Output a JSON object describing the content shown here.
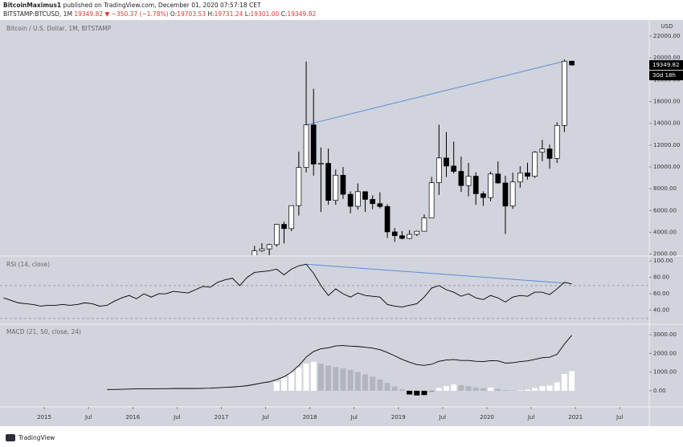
{
  "header": {
    "author": "BitcoinMaximus1",
    "published": "published on TradingView.com, December 01, 2020 07:57:18 CET",
    "symbol": "BITSTAMP:BTCUSD, 1M",
    "price": "19349.82",
    "change": "▼ −350.37 (−1.78%)",
    "ohlc": [
      {
        "label": "O:",
        "value": "19703.53"
      },
      {
        "label": "H:",
        "value": "19731.24"
      },
      {
        "label": "L:",
        "value": "19301.00"
      },
      {
        "label": "C:",
        "value": "19349.82"
      }
    ]
  },
  "footer": {
    "logo": "TradingView"
  },
  "chart_data": [
    {
      "type": "candlestick",
      "title": "Bitcoin / U.S. Dollar, 1M, BITSTAMP",
      "unit": "USD",
      "x": [
        "2017-05",
        "2017-06",
        "2017-07",
        "2017-08",
        "2017-09",
        "2017-10",
        "2017-11",
        "2017-12",
        "2018-01",
        "2018-02",
        "2018-03",
        "2018-04",
        "2018-05",
        "2018-06",
        "2018-07",
        "2018-08",
        "2018-09",
        "2018-10",
        "2018-11",
        "2018-12",
        "2019-01",
        "2019-02",
        "2019-03",
        "2019-04",
        "2019-05",
        "2019-06",
        "2019-07",
        "2019-08",
        "2019-09",
        "2019-10",
        "2019-11",
        "2019-12",
        "2020-01",
        "2020-02",
        "2020-03",
        "2020-04",
        "2020-05",
        "2020-06",
        "2020-07",
        "2020-08",
        "2020-09",
        "2020-10",
        "2020-11",
        "2020-12"
      ],
      "open": [
        1348,
        2300,
        2480,
        2870,
        4730,
        4340,
        6450,
        9950,
        13860,
        10260,
        10330,
        6930,
        9240,
        7490,
        6390,
        7730,
        7020,
        6630,
        6370,
        4040,
        3690,
        3440,
        3810,
        4100,
        5320,
        8560,
        10820,
        10080,
        9590,
        8290,
        9150,
        7540,
        7190,
        9350,
        8530,
        6410,
        8620,
        9450,
        9140,
        11350,
        11650,
        10780,
        13800,
        19703.53
      ],
      "high": [
        2760,
        3000,
        2950,
        4750,
        4980,
        6450,
        11400,
        19666,
        17170,
        11780,
        11680,
        9760,
        9990,
        7760,
        8490,
        7760,
        7400,
        7680,
        6580,
        4400,
        4120,
        4190,
        4140,
        5640,
        9080,
        13880,
        13200,
        12320,
        10950,
        10370,
        9510,
        7750,
        9570,
        10500,
        9190,
        9470,
        10070,
        10380,
        11450,
        12480,
        12050,
        14100,
        19850,
        19731.24
      ],
      "low": [
        1348,
        2200,
        1840,
        2680,
        2980,
        4110,
        5530,
        9500,
        9200,
        5870,
        6530,
        6530,
        7060,
        5750,
        6080,
        5880,
        6120,
        6200,
        3480,
        3120,
        3350,
        3370,
        3660,
        4100,
        5320,
        7440,
        9070,
        9400,
        7700,
        7300,
        6520,
        6430,
        6850,
        8450,
        3850,
        6150,
        8100,
        8830,
        8990,
        10520,
        9830,
        10370,
        13200,
        19301.0
      ],
      "close": [
        2300,
        2480,
        2870,
        4730,
        4340,
        6450,
        9950,
        13860,
        10260,
        10330,
        6930,
        9240,
        7490,
        6390,
        7730,
        7020,
        6630,
        6370,
        4040,
        3690,
        3440,
        3810,
        4100,
        5320,
        8560,
        10820,
        10080,
        9590,
        8290,
        9150,
        7540,
        7190,
        9350,
        8530,
        6410,
        8620,
        9450,
        9140,
        11350,
        11650,
        10780,
        13800,
        19700,
        19349.82
      ],
      "up_color": "#ffffff",
      "down_color": "#000000",
      "trendline": {
        "x": [
          "2017-12",
          "2020-11"
        ],
        "values": [
          13860,
          19700
        ],
        "color": "#5b8dd9"
      },
      "last_label": 19349.82,
      "countdown": "30d 18h",
      "xlim": [
        "2014-07",
        "2021-11"
      ],
      "xticks": [
        {
          "value": "2015-01",
          "label": "2015"
        },
        {
          "value": "2015-07",
          "label": "Jul"
        },
        {
          "value": "2016-01",
          "label": "2016"
        },
        {
          "value": "2016-07",
          "label": "Jul"
        },
        {
          "value": "2017-01",
          "label": "2017"
        },
        {
          "value": "2017-07",
          "label": "Jul"
        },
        {
          "value": "2018-01",
          "label": "2018"
        },
        {
          "value": "2018-07",
          "label": "Jul"
        },
        {
          "value": "2019-01",
          "label": "2019"
        },
        {
          "value": "2019-07",
          "label": "Jul"
        },
        {
          "value": "2020-01",
          "label": "2020"
        },
        {
          "value": "2020-07",
          "label": "Jul"
        },
        {
          "value": "2021-01",
          "label": "2021"
        },
        {
          "value": "2021-07",
          "label": "Jul"
        }
      ],
      "ylim": [
        1900,
        23400
      ],
      "yticks": [
        {
          "value": 2000,
          "label": "2000.00"
        },
        {
          "value": 4000,
          "label": "4000.00"
        },
        {
          "value": 6000,
          "label": "6000.00"
        },
        {
          "value": 8000,
          "label": "8000.00"
        },
        {
          "value": 10000,
          "label": "10000.00"
        },
        {
          "value": 12000,
          "label": "12000.00"
        },
        {
          "value": 14000,
          "label": "14000.00"
        },
        {
          "value": 16000,
          "label": "16000.00"
        },
        {
          "value": 18000,
          "label": "18000.00"
        },
        {
          "value": 20000,
          "label": "20000.00"
        },
        {
          "value": 22000,
          "label": "22000.00"
        }
      ]
    },
    {
      "type": "line",
      "title": "RSI (14, close)",
      "x": [
        "2014-07",
        "2014-08",
        "2014-09",
        "2014-10",
        "2014-11",
        "2014-12",
        "2015-01",
        "2015-02",
        "2015-03",
        "2015-04",
        "2015-05",
        "2015-06",
        "2015-07",
        "2015-08",
        "2015-09",
        "2015-10",
        "2015-11",
        "2015-12",
        "2016-01",
        "2016-02",
        "2016-03",
        "2016-04",
        "2016-05",
        "2016-06",
        "2016-07",
        "2016-08",
        "2016-09",
        "2016-10",
        "2016-11",
        "2016-12",
        "2017-01",
        "2017-02",
        "2017-03",
        "2017-04",
        "2017-05",
        "2017-06",
        "2017-07",
        "2017-08",
        "2017-09",
        "2017-10",
        "2017-11",
        "2017-12",
        "2018-01",
        "2018-02",
        "2018-03",
        "2018-04",
        "2018-05",
        "2018-06",
        "2018-07",
        "2018-08",
        "2018-09",
        "2018-10",
        "2018-11",
        "2018-12",
        "2019-01",
        "2019-02",
        "2019-03",
        "2019-04",
        "2019-05",
        "2019-06",
        "2019-07",
        "2019-08",
        "2019-09",
        "2019-10",
        "2019-11",
        "2019-12",
        "2020-01",
        "2020-02",
        "2020-03",
        "2020-04",
        "2020-05",
        "2020-06",
        "2020-07",
        "2020-08",
        "2020-09",
        "2020-10",
        "2020-11",
        "2020-12"
      ],
      "series": [
        {
          "color": "#000000",
          "values": [
            55,
            52,
            49,
            48,
            47,
            45,
            46,
            46,
            47,
            46,
            47,
            49,
            48,
            45,
            46,
            51,
            55,
            58,
            54,
            60,
            56,
            60,
            60,
            63,
            62,
            61,
            65,
            69,
            68,
            74,
            77,
            79,
            70,
            80,
            86,
            87,
            88,
            90,
            83,
            90,
            94,
            96,
            85,
            70,
            58,
            66,
            60,
            56,
            61,
            58,
            57,
            56,
            47,
            45,
            44,
            46,
            48,
            56,
            67,
            70,
            65,
            62,
            57,
            60,
            55,
            53,
            58,
            55,
            50,
            56,
            58,
            57,
            62,
            62,
            59,
            66,
            74,
            72
          ]
        }
      ],
      "bands": [
        30,
        70
      ],
      "trendline": {
        "x": [
          "2017-12",
          "2020-11"
        ],
        "values": [
          96,
          73
        ],
        "color": "#5b8dd9"
      },
      "ylim": [
        24,
        105
      ],
      "yticks": [
        {
          "value": 40,
          "label": "40.00"
        },
        {
          "value": 60,
          "label": "60.00"
        },
        {
          "value": 80,
          "label": "80.00"
        },
        {
          "value": 100,
          "label": "100.00"
        }
      ]
    },
    {
      "type": "combo",
      "title": "MACD (21, 50, close, 24)",
      "x": [
        "2015-09",
        "2015-10",
        "2015-11",
        "2015-12",
        "2016-01",
        "2016-02",
        "2016-03",
        "2016-04",
        "2016-05",
        "2016-06",
        "2016-07",
        "2016-08",
        "2016-09",
        "2016-10",
        "2016-11",
        "2016-12",
        "2017-01",
        "2017-02",
        "2017-03",
        "2017-04",
        "2017-05",
        "2017-06",
        "2017-07",
        "2017-08",
        "2017-09",
        "2017-10",
        "2017-11",
        "2017-12",
        "2018-01",
        "2018-02",
        "2018-03",
        "2018-04",
        "2018-05",
        "2018-06",
        "2018-07",
        "2018-08",
        "2018-09",
        "2018-10",
        "2018-11",
        "2018-12",
        "2019-01",
        "2019-02",
        "2019-03",
        "2019-04",
        "2019-05",
        "2019-06",
        "2019-07",
        "2019-08",
        "2019-09",
        "2019-10",
        "2019-11",
        "2019-12",
        "2020-01",
        "2020-02",
        "2020-03",
        "2020-04",
        "2020-05",
        "2020-06",
        "2020-07",
        "2020-08",
        "2020-09",
        "2020-10",
        "2020-11",
        "2020-12"
      ],
      "series": [
        {
          "color": "#000000",
          "values": [
            70,
            70,
            80,
            90,
            100,
            100,
            100,
            110,
            110,
            120,
            120,
            120,
            120,
            130,
            140,
            160,
            180,
            200,
            230,
            270,
            340,
            420,
            480,
            600,
            750,
            1000,
            1350,
            1800,
            2100,
            2250,
            2300,
            2400,
            2420,
            2390,
            2370,
            2330,
            2280,
            2200,
            2050,
            1870,
            1680,
            1530,
            1400,
            1360,
            1420,
            1580,
            1650,
            1670,
            1620,
            1620,
            1580,
            1560,
            1610,
            1600,
            1480,
            1500,
            1560,
            1600,
            1680,
            1770,
            1800,
            1950,
            2500,
            2970
          ]
        }
      ],
      "histogram": {
        "x": [
          "2017-08",
          "2017-09",
          "2017-10",
          "2017-11",
          "2017-12",
          "2018-01",
          "2018-02",
          "2018-03",
          "2018-04",
          "2018-05",
          "2018-06",
          "2018-07",
          "2018-08",
          "2018-09",
          "2018-10",
          "2018-11",
          "2018-12",
          "2019-01",
          "2019-02",
          "2019-03",
          "2019-04",
          "2019-05",
          "2019-06",
          "2019-07",
          "2019-08",
          "2019-09",
          "2019-10",
          "2019-11",
          "2019-12",
          "2020-01",
          "2020-02",
          "2020-03",
          "2020-04",
          "2020-05",
          "2020-06",
          "2020-07",
          "2020-08",
          "2020-09",
          "2020-10",
          "2020-11",
          "2020-12"
        ],
        "values": [
          480,
          700,
          1000,
          1250,
          1450,
          1550,
          1450,
          1350,
          1270,
          1200,
          1120,
          1000,
          880,
          760,
          600,
          420,
          220,
          80,
          -200,
          -250,
          -230,
          -60,
          150,
          250,
          330,
          300,
          250,
          170,
          140,
          170,
          100,
          40,
          20,
          30,
          60,
          150,
          250,
          280,
          450,
          900,
          1050
        ],
        "colors": [
          "#ffffff",
          "#ffffff",
          "#ffffff",
          "#ffffff",
          "#ffffff",
          "#ffffff",
          "#b2b5be",
          "#b2b5be",
          "#b2b5be",
          "#b2b5be",
          "#b2b5be",
          "#b2b5be",
          "#b2b5be",
          "#b2b5be",
          "#b2b5be",
          "#b2b5be",
          "#b2b5be",
          "#b2b5be",
          "#000000",
          "#000000",
          "#000000",
          "#9598a1",
          "#ffffff",
          "#ffffff",
          "#ffffff",
          "#b2b5be",
          "#b2b5be",
          "#b2b5be",
          "#b2b5be",
          "#ffffff",
          "#b2b5be",
          "#b2b5be",
          "#b2b5be",
          "#ffffff",
          "#ffffff",
          "#ffffff",
          "#ffffff",
          "#ffffff",
          "#ffffff",
          "#ffffff",
          "#ffffff"
        ]
      },
      "ylim": [
        -820,
        3520
      ],
      "yticks": [
        {
          "value": 0,
          "label": "0.00"
        },
        {
          "value": 1000,
          "label": "1000.00"
        },
        {
          "value": 2000,
          "label": "2000.00"
        },
        {
          "value": 3000,
          "label": "3000.00"
        }
      ]
    }
  ]
}
